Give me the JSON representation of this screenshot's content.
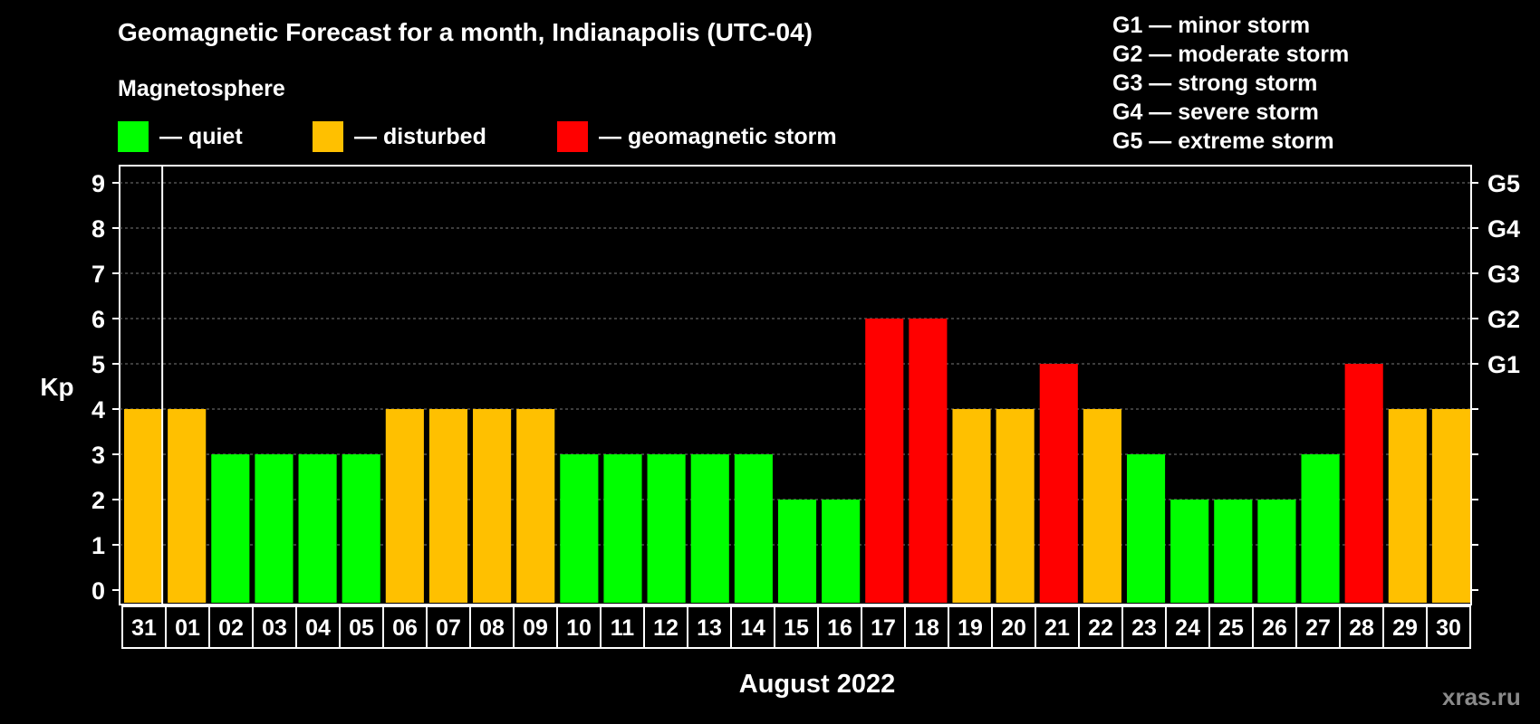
{
  "title": "Geomagnetic Forecast for a month, Indianapolis (UTC-04)",
  "magnetosphere_title": "Magnetosphere",
  "legend": [
    {
      "label": "— quiet",
      "color": "#00ff00"
    },
    {
      "label": "— disturbed",
      "color": "#ffc000"
    },
    {
      "label": "— geomagnetic storm",
      "color": "#ff0000"
    }
  ],
  "storm_scale": [
    "G1 — minor storm",
    "G2 — moderate storm",
    "G3 — strong storm",
    "G4 — severe storm",
    "G5 — extreme storm"
  ],
  "watermark": "xras.ru",
  "chart_data": {
    "type": "bar",
    "ylabel": "Kp",
    "xlabel": "August 2022",
    "ylim": [
      0,
      9
    ],
    "yticks": [
      "0",
      "1",
      "2",
      "3",
      "4",
      "5",
      "6",
      "7",
      "8",
      "9"
    ],
    "right_ticks": [
      {
        "value": 5,
        "label": "G1"
      },
      {
        "value": 6,
        "label": "G2"
      },
      {
        "value": 7,
        "label": "G3"
      },
      {
        "value": 8,
        "label": "G4"
      },
      {
        "value": 9,
        "label": "G5"
      }
    ],
    "grid": true,
    "categories": [
      "31",
      "01",
      "02",
      "03",
      "04",
      "05",
      "06",
      "07",
      "08",
      "09",
      "10",
      "11",
      "12",
      "13",
      "14",
      "15",
      "16",
      "17",
      "18",
      "19",
      "20",
      "21",
      "22",
      "23",
      "24",
      "25",
      "26",
      "27",
      "28",
      "29",
      "30"
    ],
    "values": [
      4,
      4,
      3,
      3,
      3,
      3,
      4,
      4,
      4,
      4,
      3,
      3,
      3,
      3,
      3,
      2,
      2,
      6,
      6,
      4,
      4,
      5,
      4,
      3,
      2,
      2,
      2,
      3,
      5,
      4,
      4
    ],
    "colors": {
      "quiet": "#00ff00",
      "disturbed": "#ffc000",
      "storm": "#ff0000"
    }
  }
}
